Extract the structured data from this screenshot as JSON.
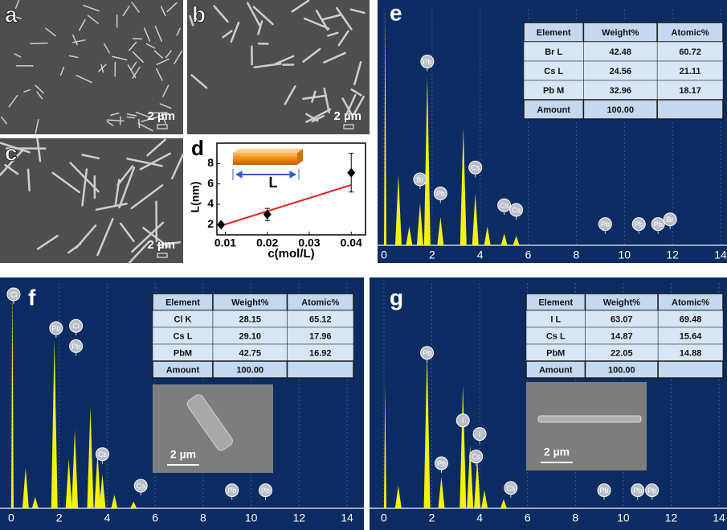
{
  "panels": [
    {
      "label": "a",
      "scale_bar": "2 µm"
    },
    {
      "label": "b",
      "scale_bar": "2 µm"
    },
    {
      "label": "c",
      "scale_bar": "2 µm"
    }
  ],
  "chart_data": [
    {
      "type": "scatter",
      "label": "d",
      "x_label": "c(mol/L)",
      "y_label": "L(nm)",
      "inset_label": "L",
      "x": [
        0.009,
        0.02,
        0.04
      ],
      "values": [
        2.0,
        3.0,
        7.1
      ],
      "errors": [
        0.2,
        0.6,
        1.9
      ],
      "color": "#000000",
      "fit": {
        "x": [
          0.009,
          0.04
        ],
        "values": [
          1.9,
          5.9
        ],
        "color": "#e02020"
      },
      "xlim": [
        0.008,
        0.0434
      ],
      "xticks": [
        0.01,
        0.02,
        0.03,
        0.04
      ],
      "ylim": [
        1,
        10
      ],
      "yticks": [
        2,
        4,
        6,
        8
      ]
    },
    {
      "type": "spectrum",
      "label": "e",
      "color": "#f2f20a",
      "x": [
        0.05,
        0.6,
        1.05,
        1.5,
        1.8,
        2.35,
        3.3,
        3.8,
        4.3,
        5.0,
        5.5
      ],
      "values": [
        100,
        30,
        8,
        18,
        72,
        12,
        50,
        22,
        8,
        5,
        4
      ],
      "xlim": [
        -0.2,
        14.2
      ],
      "xticks": [
        0,
        2,
        4,
        6,
        8,
        10,
        12,
        14
      ],
      "ylim": [
        0,
        100
      ],
      "markers": [
        {
          "label": "Pb",
          "x": 1.8,
          "y": 78
        },
        {
          "label": "Br",
          "x": 1.5,
          "y": 28
        },
        {
          "label": "Pb",
          "x": 2.35,
          "y": 22
        },
        {
          "label": "Cs",
          "x": 3.8,
          "y": 33
        },
        {
          "label": "Cs",
          "x": 5.0,
          "y": 17
        },
        {
          "label": "Cs",
          "x": 5.5,
          "y": 15
        },
        {
          "label": "Pb",
          "x": 9.2,
          "y": 9
        },
        {
          "label": "Pb",
          "x": 10.6,
          "y": 9
        },
        {
          "label": "Pb",
          "x": 11.4,
          "y": 9
        },
        {
          "label": "Br",
          "x": 11.9,
          "y": 11
        }
      ],
      "table": {
        "header": [
          "Element",
          "Weight%",
          "Atomic%"
        ],
        "rows": [
          [
            "Br L",
            "42.48",
            "60.72"
          ],
          [
            "Cs L",
            "24.56",
            "21.11"
          ],
          [
            "Pb M",
            "32.96",
            "18.17"
          ]
        ],
        "total": [
          "Amount",
          "100.00"
        ]
      }
    },
    {
      "type": "spectrum",
      "label": "f",
      "color": "#f2f20a",
      "x": [
        0.05,
        0.6,
        1.0,
        1.8,
        2.4,
        2.65,
        3.3,
        3.6,
        3.8,
        4.3,
        5.1
      ],
      "values": [
        100,
        18,
        5,
        75,
        22,
        35,
        45,
        25,
        15,
        6,
        3
      ],
      "xlim": [
        -0.3,
        14.5
      ],
      "xticks": [
        0,
        2,
        4,
        6,
        8,
        10,
        12,
        14
      ],
      "ylim": [
        0,
        100
      ],
      "markers": [
        {
          "label": "Cl",
          "x": 0.1,
          "y": 95
        },
        {
          "label": "Pb",
          "x": 1.87,
          "y": 80
        },
        {
          "label": "Cl",
          "x": 2.7,
          "y": 81
        },
        {
          "label": "Pb",
          "x": 2.7,
          "y": 72
        },
        {
          "label": "Cs",
          "x": 3.8,
          "y": 24
        },
        {
          "label": "Cs",
          "x": 5.4,
          "y": 10
        },
        {
          "label": "Pb",
          "x": 9.2,
          "y": 8
        },
        {
          "label": "Pb",
          "x": 10.6,
          "y": 8
        }
      ],
      "table": {
        "header": [
          "Element",
          "Weight%",
          "Atomic%"
        ],
        "rows": [
          [
            "Cl K",
            "28.15",
            "65.12"
          ],
          [
            "Cs L",
            "29.10",
            "17.96"
          ],
          [
            "PbM",
            "42.75",
            "16.92"
          ]
        ],
        "total": [
          "Amount",
          "100.00"
        ]
      },
      "inset_scale_bar": "2 µm"
    },
    {
      "type": "spectrum",
      "label": "g",
      "color": "#f2f20a",
      "x": [
        0.05,
        0.6,
        1.8,
        2.4,
        3.3,
        3.6,
        3.9,
        4.2,
        5.0
      ],
      "values": [
        55,
        10,
        70,
        14,
        55,
        28,
        22,
        8,
        4
      ],
      "xlim": [
        -0.2,
        14.3
      ],
      "xticks": [
        0,
        2,
        4,
        6,
        8,
        10,
        12,
        14
      ],
      "ylim": [
        0,
        100
      ],
      "markers": [
        {
          "label": "Pb",
          "x": 1.8,
          "y": 69
        },
        {
          "label": "Pb",
          "x": 2.4,
          "y": 20
        },
        {
          "label": "I",
          "x": 3.3,
          "y": 39
        },
        {
          "label": "I",
          "x": 4.0,
          "y": 33
        },
        {
          "label": "Cs",
          "x": 3.85,
          "y": 23
        },
        {
          "label": "Cs",
          "x": 5.3,
          "y": 9
        },
        {
          "label": "Pb",
          "x": 9.2,
          "y": 8
        },
        {
          "label": "Pb",
          "x": 10.6,
          "y": 8
        },
        {
          "label": "Pb",
          "x": 11.2,
          "y": 8
        }
      ],
      "table": {
        "header": [
          "Element",
          "Weight%",
          "Atomic%"
        ],
        "rows": [
          [
            "I L",
            "63.07",
            "69.48"
          ],
          [
            "Cs L",
            "14.87",
            "15.64"
          ],
          [
            "PbM",
            "22.05",
            "14.88"
          ]
        ],
        "total": [
          "Amount",
          "100.00"
        ]
      },
      "inset_scale_bar": "2 µm"
    }
  ]
}
